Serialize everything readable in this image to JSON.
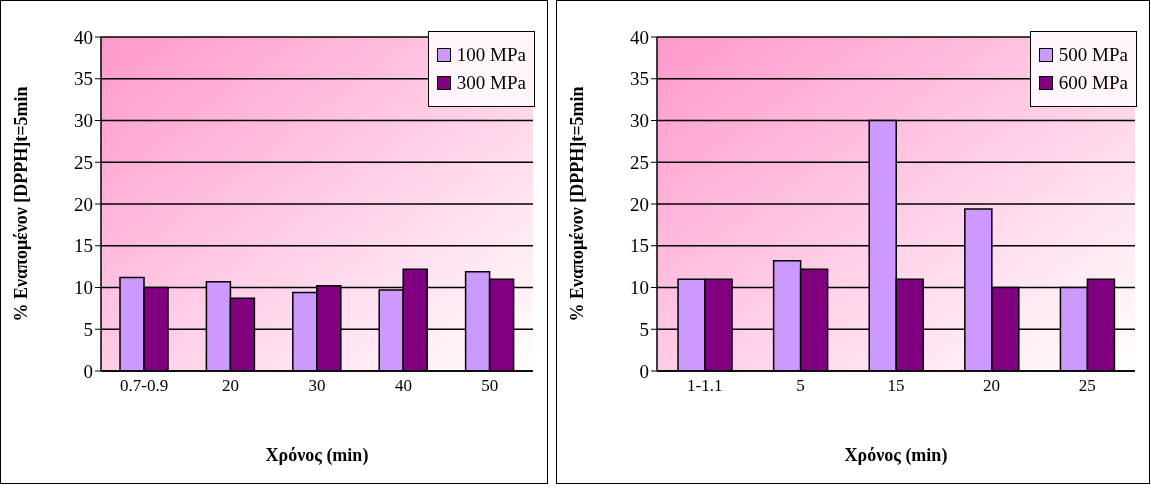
{
  "chart_data": [
    {
      "type": "bar",
      "xlabel": "Χρόνος (min)",
      "ylabel": "% Εναπομένον [DPPH]t=5min",
      "categories": [
        "0.7-0.9",
        "20",
        "30",
        "40",
        "50"
      ],
      "series": [
        {
          "name": "100 MPa",
          "color": "#cc99ff",
          "values": [
            11.2,
            10.7,
            9.4,
            9.7,
            11.9
          ]
        },
        {
          "name": "300 MPa",
          "color": "#800080",
          "values": [
            10.0,
            8.7,
            10.2,
            12.2,
            11.0
          ]
        }
      ],
      "ylim": [
        0,
        40
      ],
      "yticks": [
        0,
        5,
        10,
        15,
        20,
        25,
        30,
        35,
        40
      ],
      "grid": "y",
      "legend": "top right"
    },
    {
      "type": "bar",
      "xlabel": "Χρόνος (min)",
      "ylabel": "% Εναπομένον [DPPH]t=5min",
      "categories": [
        "1-1.1",
        "5",
        "15",
        "20",
        "25"
      ],
      "series": [
        {
          "name": "500 MPa",
          "color": "#cc99ff",
          "values": [
            11,
            13.2,
            30,
            19.4,
            10
          ]
        },
        {
          "name": "600 MPa",
          "color": "#800080",
          "values": [
            11,
            12.2,
            11,
            10,
            11
          ]
        }
      ],
      "ylim": [
        0,
        40
      ],
      "yticks": [
        0,
        5,
        10,
        15,
        20,
        25,
        30,
        35,
        40
      ],
      "grid": "y",
      "legend": "top right"
    }
  ]
}
